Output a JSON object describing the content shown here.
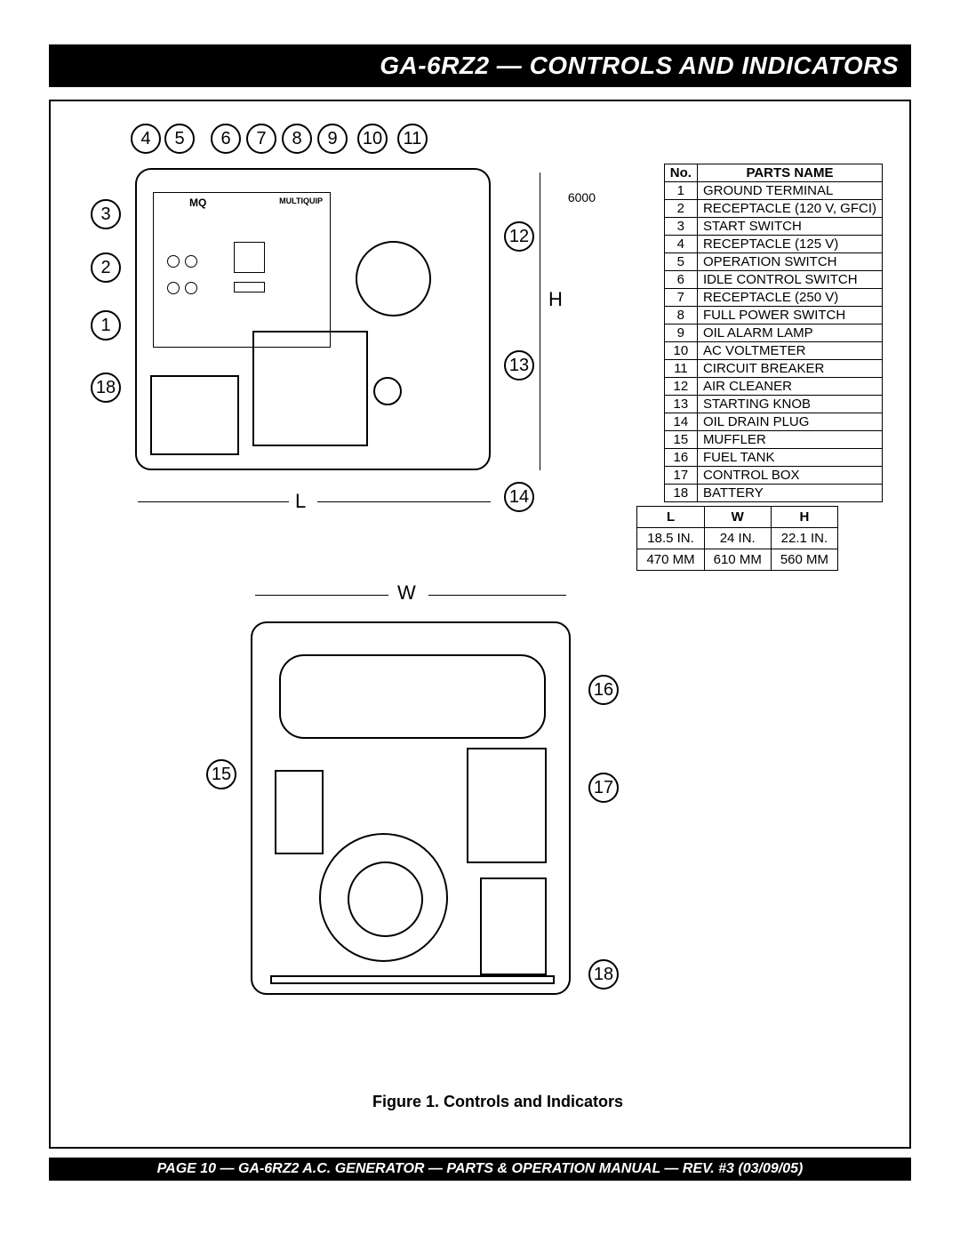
{
  "header": {
    "title": "GA-6RZ2 — CONTROLS AND INDICATORS"
  },
  "footer": {
    "text": "PAGE 10 — GA-6RZ2 A.C. GENERATOR — PARTS & OPERATION MANUAL — REV. #3 (03/09/05)"
  },
  "caption": "Figure 1.  Controls and Indicators",
  "parts_table": {
    "headers": {
      "no": "No.",
      "name": "PARTS NAME"
    },
    "rows": [
      {
        "no": "1",
        "name": "GROUND TERMINAL"
      },
      {
        "no": "2",
        "name": "RECEPTACLE (120 V, GFCI)"
      },
      {
        "no": "3",
        "name": "START SWITCH"
      },
      {
        "no": "4",
        "name": "RECEPTACLE (125 V)"
      },
      {
        "no": "5",
        "name": "OPERATION SWITCH"
      },
      {
        "no": "6",
        "name": "IDLE CONTROL SWITCH"
      },
      {
        "no": "7",
        "name": "RECEPTACLE (250 V)"
      },
      {
        "no": "8",
        "name": "FULL POWER SWITCH"
      },
      {
        "no": "9",
        "name": "OIL ALARM LAMP"
      },
      {
        "no": "10",
        "name": "AC VOLTMETER"
      },
      {
        "no": "11",
        "name": "CIRCUIT BREAKER"
      },
      {
        "no": "12",
        "name": "AIR CLEANER"
      },
      {
        "no": "13",
        "name": "STARTING KNOB"
      },
      {
        "no": "14",
        "name": "OIL DRAIN PLUG"
      },
      {
        "no": "15",
        "name": "MUFFLER"
      },
      {
        "no": "16",
        "name": "FUEL TANK"
      },
      {
        "no": "17",
        "name": "CONTROL BOX"
      },
      {
        "no": "18",
        "name": "BATTERY"
      }
    ]
  },
  "dim_table": {
    "headers": [
      "L",
      "W",
      "H"
    ],
    "rows": [
      [
        "18.5 IN.",
        "24 IN.",
        "22.1 IN."
      ],
      [
        "470 MM",
        "610 MM",
        "560 MM"
      ]
    ]
  },
  "callouts_top": {
    "row": [
      "4",
      "5",
      "6",
      "7",
      "8",
      "9",
      "10",
      "11"
    ],
    "left": [
      "3",
      "2",
      "1",
      "18"
    ],
    "right": [
      "12",
      "13",
      "14"
    ]
  },
  "callouts_bottom": {
    "left": [
      "15"
    ],
    "right": [
      "16",
      "17",
      "18"
    ]
  },
  "dim_labels": {
    "L": "L",
    "W": "W",
    "H": "H"
  },
  "brand": {
    "logo": "MQ",
    "name": "MULTIQUIP",
    "model": "6000"
  },
  "colors": {
    "bar_bg": "#000000",
    "bar_text": "#ffffff",
    "border": "#000000",
    "page_bg": "#ffffff"
  }
}
